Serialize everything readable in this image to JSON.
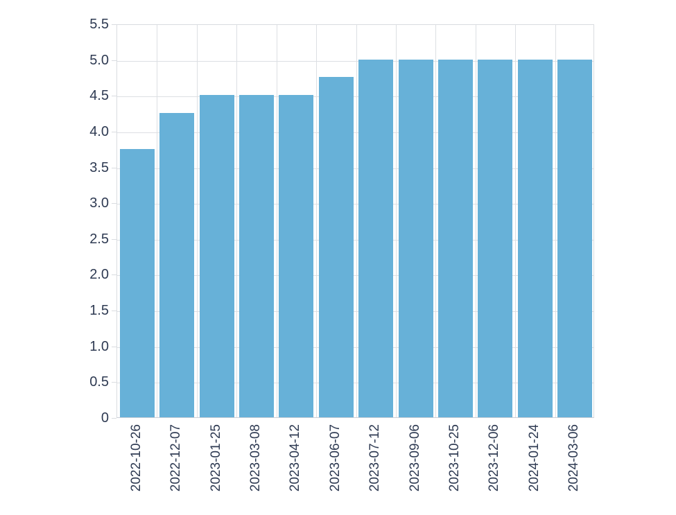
{
  "chart_data": {
    "type": "bar",
    "title": "",
    "xlabel": "",
    "ylabel": "",
    "categories": [
      "2022-10-26",
      "2022-12-07",
      "2023-01-25",
      "2023-03-08",
      "2023-04-12",
      "2023-06-07",
      "2023-07-12",
      "2023-09-06",
      "2023-10-25",
      "2023-12-06",
      "2024-01-24",
      "2024-03-06"
    ],
    "values": [
      3.75,
      4.25,
      4.5,
      4.5,
      4.5,
      4.75,
      5.0,
      5.0,
      5.0,
      5.0,
      5.0,
      5.0
    ],
    "ylim": [
      0,
      5.5
    ],
    "y_tick_labels": [
      "0",
      "0.5",
      "1.0",
      "1.5",
      "2.0",
      "2.5",
      "3.0",
      "3.5",
      "4.0",
      "4.5",
      "5.0",
      "5.5"
    ],
    "grid": "on",
    "legend": "none",
    "colors": {
      "bar_fill": "#67b1d8",
      "grid_line": "#dcdfe3",
      "axis_line": "#c9ced6",
      "tick_text": "#2e3a52",
      "background": "#ffffff"
    }
  }
}
